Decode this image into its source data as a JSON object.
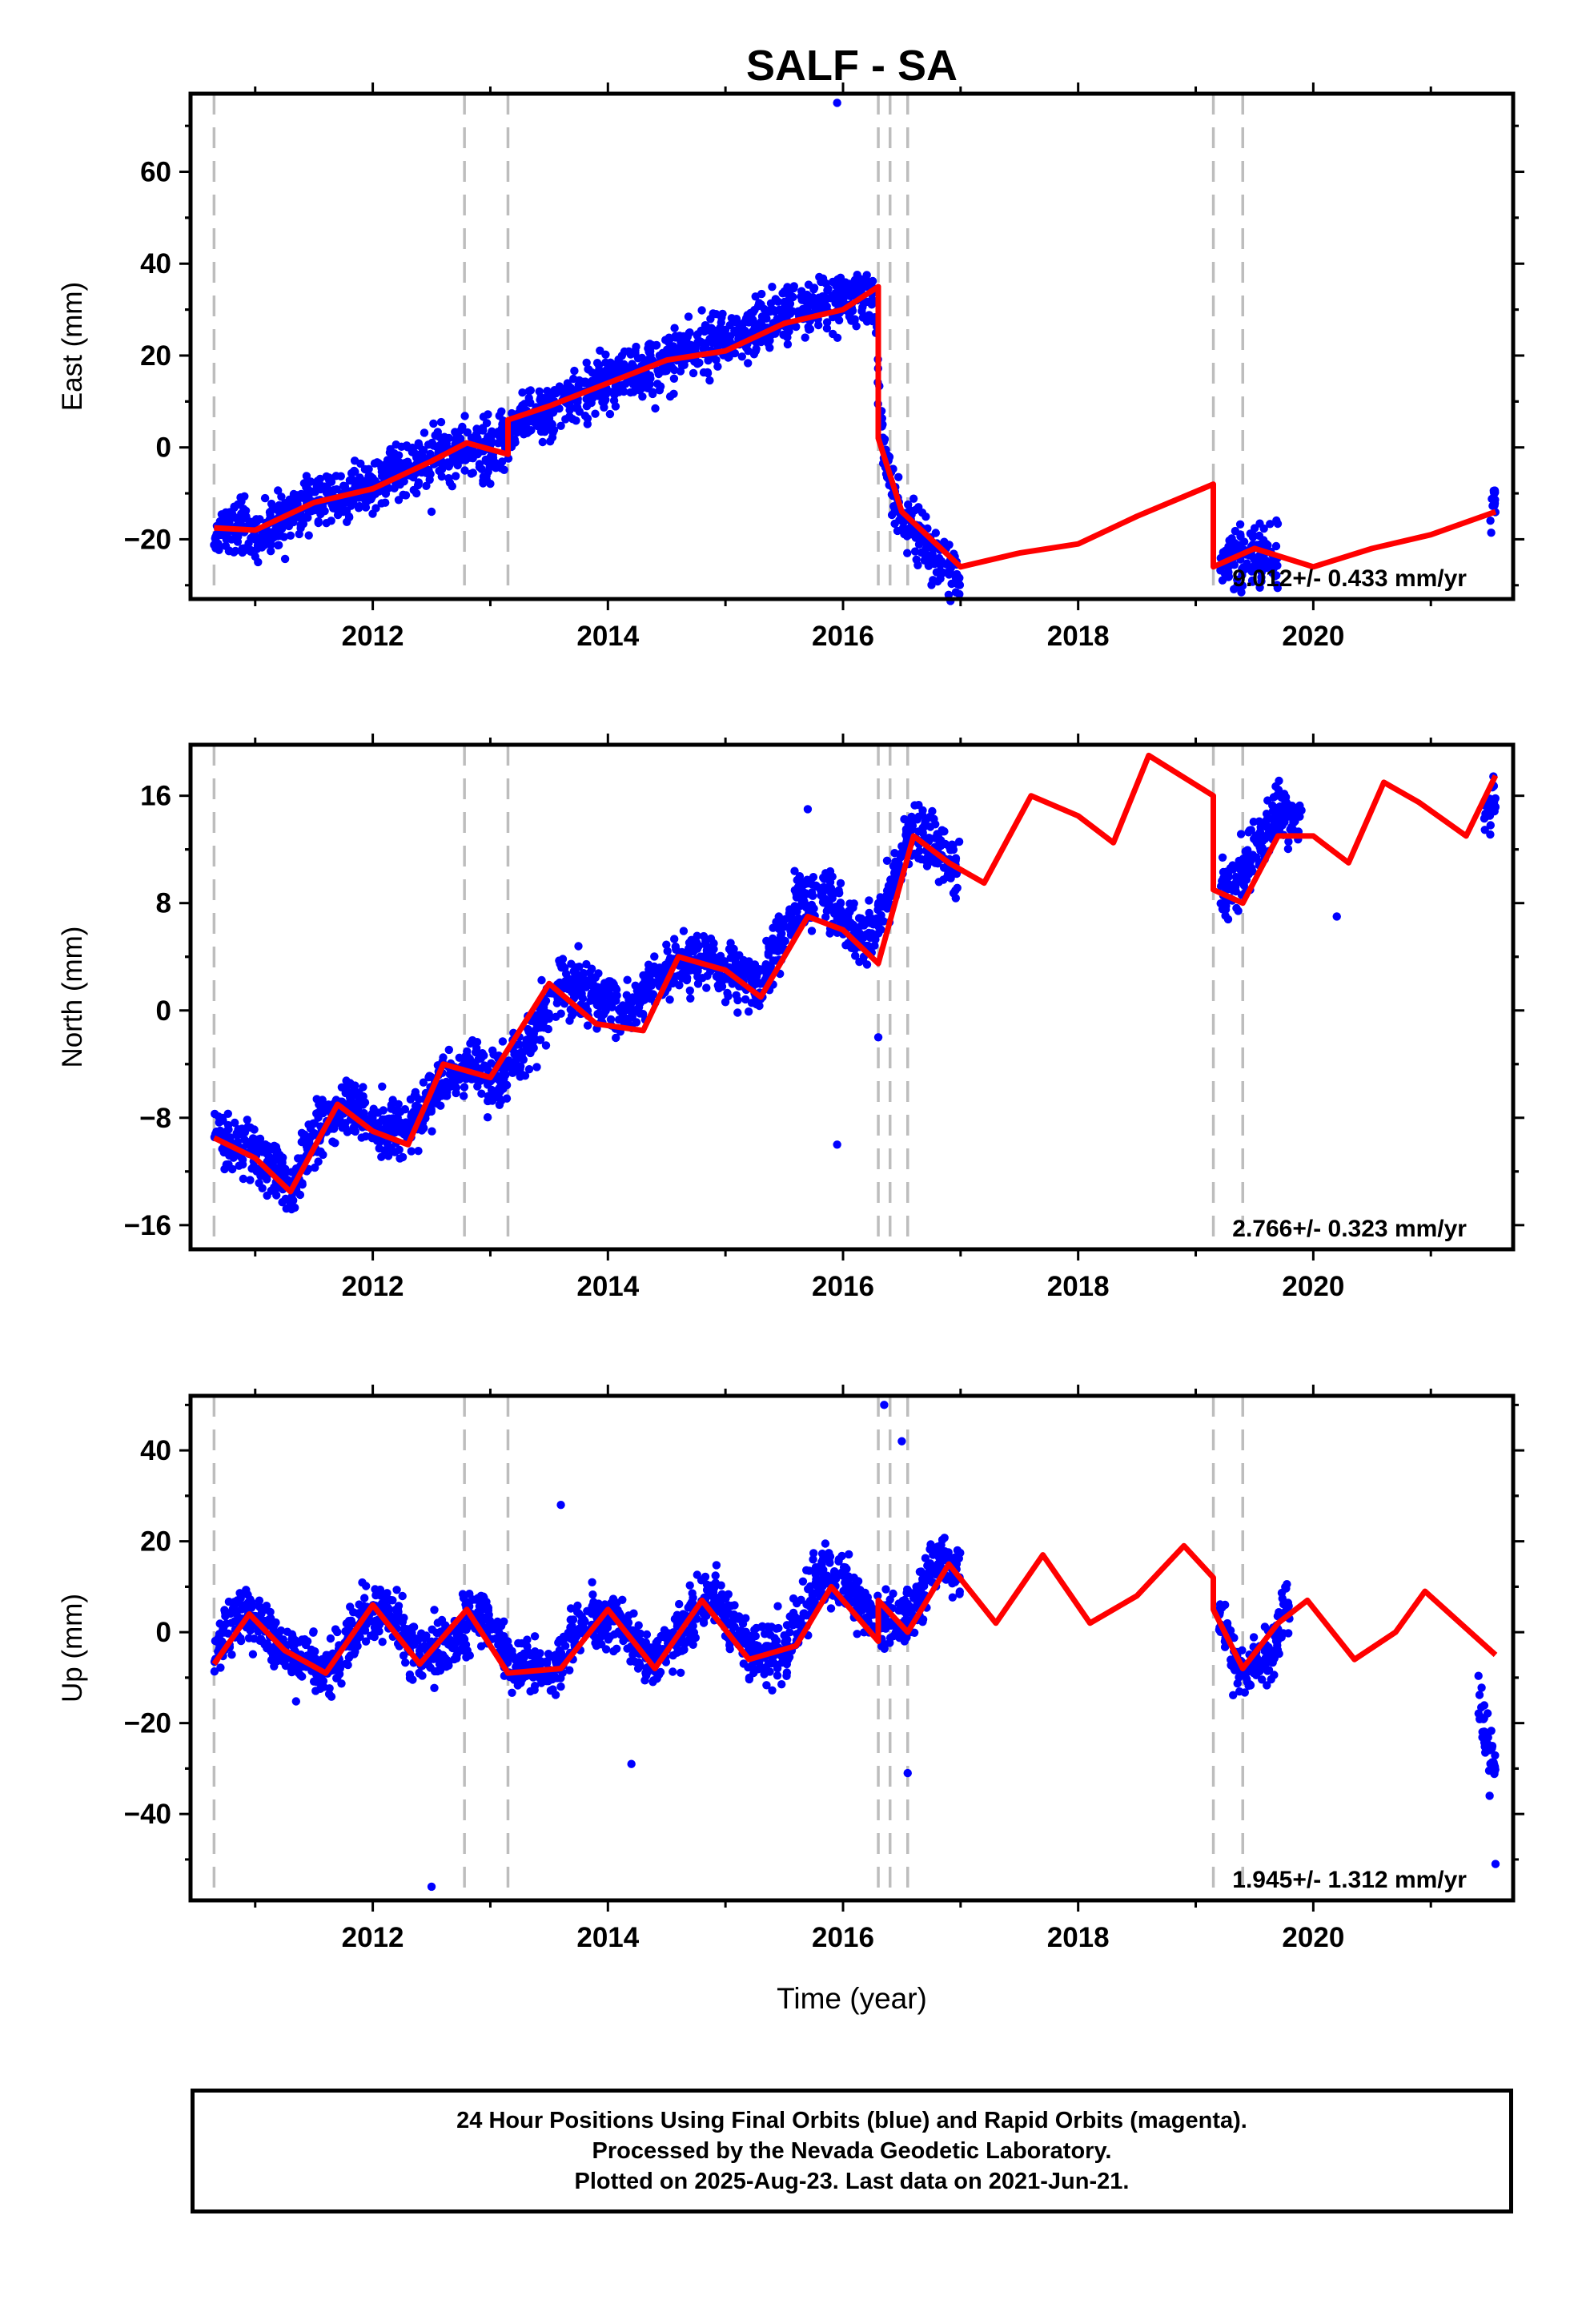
{
  "chart_data": {
    "type": "scatter",
    "title": "SALF - SA",
    "xlabel": "Time (year)",
    "xlim": [
      2010.45,
      2021.7
    ],
    "x_ticks": [
      2012,
      2014,
      2016,
      2018,
      2020
    ],
    "event_lines_year": [
      2010.65,
      2012.78,
      2013.15,
      2016.3,
      2016.4,
      2016.55,
      2019.15,
      2019.4
    ],
    "colors": {
      "observed": "#0000ff",
      "model": "#ff0000",
      "event_line": "#bdbdbd"
    },
    "panels": [
      {
        "ylabel": "East (mm)",
        "ylim": [
          -33,
          77
        ],
        "y_ticks": [
          -20,
          0,
          20,
          40,
          60
        ],
        "y_tick_labels": [
          "−20",
          "0",
          "20",
          "40",
          "60"
        ],
        "rate": "9.012+/- 0.433 mm/yr",
        "model_curve": [
          [
            2010.65,
            -17.5
          ],
          [
            2011.0,
            -18
          ],
          [
            2011.5,
            -12
          ],
          [
            2012.0,
            -9
          ],
          [
            2012.5,
            -3
          ],
          [
            2012.8,
            1
          ],
          [
            2013.15,
            -1.5
          ],
          [
            2013.15,
            6
          ],
          [
            2013.5,
            9
          ],
          [
            2014.0,
            14
          ],
          [
            2014.5,
            19
          ],
          [
            2015.0,
            21
          ],
          [
            2015.5,
            27
          ],
          [
            2016.0,
            30
          ],
          [
            2016.3,
            35
          ],
          [
            2016.3,
            2
          ],
          [
            2016.5,
            -14
          ],
          [
            2017.0,
            -26
          ],
          [
            2017.5,
            -23
          ],
          [
            2018.0,
            -21
          ],
          [
            2018.5,
            -15
          ],
          [
            2019.15,
            -8
          ],
          [
            2019.15,
            -26
          ],
          [
            2019.5,
            -22
          ],
          [
            2020.0,
            -26
          ],
          [
            2020.5,
            -22
          ],
          [
            2021.0,
            -19
          ],
          [
            2021.55,
            -14
          ]
        ],
        "observed": [
          [
            2010.65,
            -19
          ],
          [
            2010.75,
            -19.5
          ],
          [
            2010.85,
            -17
          ],
          [
            2011.0,
            -19
          ],
          [
            2011.2,
            -16
          ],
          [
            2011.3,
            -14
          ],
          [
            2011.5,
            -11
          ],
          [
            2011.7,
            -11
          ],
          [
            2012.0,
            -9
          ],
          [
            2012.2,
            -5
          ],
          [
            2012.4,
            -3
          ],
          [
            2012.6,
            -1
          ],
          [
            2012.8,
            0
          ],
          [
            2013.0,
            -1
          ],
          [
            2013.25,
            6
          ],
          [
            2013.5,
            8
          ],
          [
            2013.75,
            12
          ],
          [
            2014.0,
            15
          ],
          [
            2014.25,
            17
          ],
          [
            2014.5,
            19
          ],
          [
            2014.75,
            22
          ],
          [
            2015.0,
            23
          ],
          [
            2015.25,
            26
          ],
          [
            2015.5,
            29
          ],
          [
            2015.75,
            31
          ],
          [
            2016.0,
            32
          ],
          [
            2016.25,
            34
          ],
          [
            2016.35,
            -3
          ],
          [
            2016.5,
            -15
          ],
          [
            2016.75,
            -22
          ],
          [
            2017.0,
            -28
          ],
          [
            2019.2,
            -25
          ],
          [
            2019.5,
            -23
          ],
          [
            2019.7,
            -24
          ],
          [
            2021.5,
            -15
          ],
          [
            2021.55,
            -11
          ]
        ],
        "outliers": [
          [
            2015.95,
            75
          ],
          [
            2012.5,
            -14
          ]
        ]
      },
      {
        "ylabel": "North (mm)",
        "ylim": [
          -17.8,
          19.8
        ],
        "y_ticks": [
          -16,
          -8,
          0,
          8,
          16
        ],
        "y_tick_labels": [
          "−16",
          "−8",
          "0",
          "8",
          "16"
        ],
        "rate": "2.766+/- 0.323 mm/yr",
        "model_curve": [
          [
            2010.65,
            -9.5
          ],
          [
            2011.0,
            -11
          ],
          [
            2011.3,
            -13.5
          ],
          [
            2011.7,
            -7
          ],
          [
            2012.0,
            -9
          ],
          [
            2012.3,
            -10
          ],
          [
            2012.6,
            -4
          ],
          [
            2013.0,
            -5
          ],
          [
            2013.5,
            2
          ],
          [
            2013.9,
            -1
          ],
          [
            2014.3,
            -1.5
          ],
          [
            2014.6,
            4
          ],
          [
            2015.0,
            3
          ],
          [
            2015.3,
            1
          ],
          [
            2015.7,
            7
          ],
          [
            2016.0,
            6
          ],
          [
            2016.3,
            3.5
          ],
          [
            2016.6,
            13
          ],
          [
            2016.9,
            11
          ],
          [
            2017.2,
            9.5
          ],
          [
            2017.6,
            16
          ],
          [
            2018.0,
            14.5
          ],
          [
            2018.3,
            12.5
          ],
          [
            2018.6,
            19
          ],
          [
            2019.15,
            16
          ],
          [
            2019.15,
            9
          ],
          [
            2019.4,
            8
          ],
          [
            2019.7,
            13
          ],
          [
            2020.0,
            13
          ],
          [
            2020.3,
            11
          ],
          [
            2020.6,
            17
          ],
          [
            2020.9,
            15.5
          ],
          [
            2021.3,
            13
          ],
          [
            2021.55,
            17.5
          ]
        ],
        "observed": [
          [
            2010.65,
            -9
          ],
          [
            2010.8,
            -10
          ],
          [
            2011.0,
            -10.5
          ],
          [
            2011.3,
            -13
          ],
          [
            2011.6,
            -8
          ],
          [
            2011.8,
            -7
          ],
          [
            2012.0,
            -8.5
          ],
          [
            2012.3,
            -9
          ],
          [
            2012.5,
            -6
          ],
          [
            2012.8,
            -4
          ],
          [
            2013.0,
            -5
          ],
          [
            2013.3,
            -3
          ],
          [
            2013.6,
            2
          ],
          [
            2013.9,
            1
          ],
          [
            2014.2,
            0
          ],
          [
            2014.5,
            3
          ],
          [
            2014.8,
            4
          ],
          [
            2015.0,
            3
          ],
          [
            2015.3,
            2
          ],
          [
            2015.6,
            8
          ],
          [
            2015.8,
            9
          ],
          [
            2016.0,
            7
          ],
          [
            2016.2,
            5
          ],
          [
            2016.45,
            10
          ],
          [
            2016.6,
            14
          ],
          [
            2016.8,
            12
          ],
          [
            2017.0,
            10
          ],
          [
            2019.2,
            8
          ],
          [
            2019.5,
            12
          ],
          [
            2019.7,
            15
          ],
          [
            2019.9,
            14
          ],
          [
            2021.45,
            14
          ],
          [
            2021.55,
            16
          ]
        ],
        "outliers": [
          [
            2015.95,
            -10
          ],
          [
            2015.7,
            15
          ],
          [
            2016.3,
            -2
          ],
          [
            2020.2,
            7
          ]
        ]
      },
      {
        "ylabel": "Up (mm)",
        "ylim": [
          -59,
          52
        ],
        "y_ticks": [
          -40,
          -20,
          0,
          20,
          40
        ],
        "y_tick_labels": [
          "−40",
          "−20",
          "0",
          "20",
          "40"
        ],
        "rate": "1.945+/- 1.312 mm/yr",
        "model_curve": [
          [
            2010.65,
            -7
          ],
          [
            2010.95,
            4
          ],
          [
            2011.25,
            -4
          ],
          [
            2011.6,
            -9
          ],
          [
            2012.0,
            6
          ],
          [
            2012.4,
            -7
          ],
          [
            2012.8,
            5
          ],
          [
            2013.15,
            -9
          ],
          [
            2013.6,
            -8
          ],
          [
            2014.0,
            5
          ],
          [
            2014.4,
            -8
          ],
          [
            2014.8,
            7
          ],
          [
            2015.2,
            -6
          ],
          [
            2015.6,
            -3
          ],
          [
            2015.9,
            10
          ],
          [
            2016.3,
            -2
          ],
          [
            2016.3,
            7
          ],
          [
            2016.55,
            0
          ],
          [
            2016.9,
            15
          ],
          [
            2017.3,
            2
          ],
          [
            2017.7,
            17
          ],
          [
            2018.1,
            2
          ],
          [
            2018.5,
            8
          ],
          [
            2018.9,
            19
          ],
          [
            2019.15,
            12
          ],
          [
            2019.15,
            5
          ],
          [
            2019.4,
            -8
          ],
          [
            2019.7,
            2
          ],
          [
            2019.95,
            7
          ],
          [
            2020.35,
            -6
          ],
          [
            2020.7,
            0
          ],
          [
            2020.95,
            9
          ],
          [
            2021.55,
            -5
          ]
        ],
        "observed": [
          [
            2010.65,
            -5
          ],
          [
            2010.9,
            6
          ],
          [
            2011.1,
            0
          ],
          [
            2011.3,
            -5
          ],
          [
            2011.6,
            -8
          ],
          [
            2011.9,
            3
          ],
          [
            2012.1,
            5
          ],
          [
            2012.4,
            -6
          ],
          [
            2012.7,
            -2
          ],
          [
            2012.9,
            5
          ],
          [
            2013.2,
            -7
          ],
          [
            2013.5,
            -9
          ],
          [
            2013.8,
            3
          ],
          [
            2014.1,
            2
          ],
          [
            2014.4,
            -7
          ],
          [
            2014.7,
            3
          ],
          [
            2014.9,
            8
          ],
          [
            2015.2,
            -4
          ],
          [
            2015.5,
            -5
          ],
          [
            2015.8,
            13
          ],
          [
            2016.0,
            12
          ],
          [
            2016.2,
            4
          ],
          [
            2016.4,
            2
          ],
          [
            2016.6,
            5
          ],
          [
            2016.8,
            16
          ],
          [
            2017.0,
            14
          ],
          [
            2019.2,
            4
          ],
          [
            2019.4,
            -10
          ],
          [
            2019.6,
            -5
          ],
          [
            2019.8,
            7
          ],
          [
            2021.4,
            -15
          ],
          [
            2021.5,
            -25
          ],
          [
            2021.55,
            -30
          ]
        ],
        "outliers": [
          [
            2016.35,
            50
          ],
          [
            2016.5,
            42
          ],
          [
            2013.6,
            28
          ],
          [
            2016.55,
            -31
          ],
          [
            2012.5,
            -56
          ],
          [
            2014.2,
            -29
          ],
          [
            2021.55,
            -51
          ],
          [
            2021.5,
            -36
          ]
        ]
      }
    ]
  },
  "footer": {
    "line1": "24 Hour Positions Using Final Orbits (blue) and Rapid Orbits (magenta).",
    "line2": "Processed by the Nevada Geodetic Laboratory.",
    "line3": "Plotted on 2025-Aug-23. Last data on 2021-Jun-21."
  }
}
